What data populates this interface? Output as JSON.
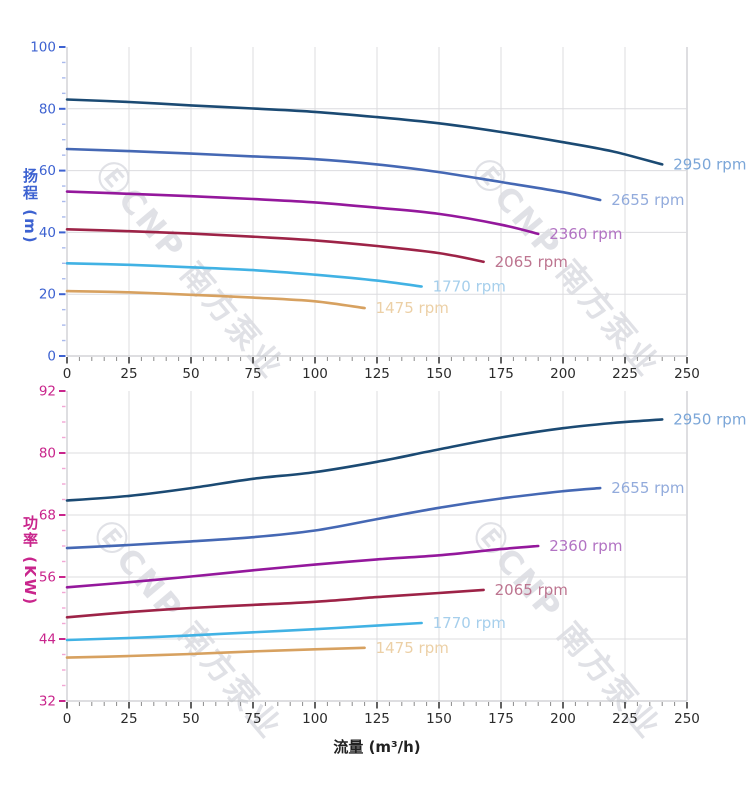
{
  "watermark": {
    "text": "ⒺCNP 南方泵业",
    "color": "#adb0be"
  },
  "chart_data": [
    {
      "type": "line",
      "title": "",
      "ylabel": "扬程 (m)",
      "xlabel": "",
      "xlim": [
        0,
        250
      ],
      "ylim": [
        0,
        100
      ],
      "x_major_step": 25,
      "x_minor_step": 5,
      "y_major_step": 20,
      "y_minor_step": 5,
      "x_ticks": [
        0,
        25,
        50,
        75,
        100,
        125,
        150,
        175,
        200,
        225,
        250
      ],
      "y_ticks": [
        0,
        20,
        40,
        60,
        80,
        100
      ],
      "axis_color": "#3d62d1",
      "axis_minor_color": "#a9b9ec",
      "grid": true,
      "legend_position": "end-of-line",
      "series": [
        {
          "name": "2950 rpm",
          "rpm": 2950,
          "color": "#1b4a73",
          "label_color": "#7ba6d8",
          "points": [
            [
              0,
              83
            ],
            [
              25,
              82.2
            ],
            [
              50,
              81.1
            ],
            [
              75,
              80.1
            ],
            [
              100,
              79
            ],
            [
              125,
              77.3
            ],
            [
              150,
              75.3
            ],
            [
              175,
              72.5
            ],
            [
              200,
              69.2
            ],
            [
              220,
              66.2
            ],
            [
              240,
              62
            ]
          ]
        },
        {
          "name": "2655 rpm",
          "rpm": 2655,
          "color": "#4568b4",
          "label_color": "#92abdc",
          "points": [
            [
              0,
              67
            ],
            [
              25,
              66.3
            ],
            [
              50,
              65.5
            ],
            [
              75,
              64.6
            ],
            [
              100,
              63.7
            ],
            [
              125,
              62
            ],
            [
              150,
              59.5
            ],
            [
              175,
              56.3
            ],
            [
              200,
              53
            ],
            [
              215,
              50.5
            ]
          ]
        },
        {
          "name": "2360 rpm",
          "rpm": 2360,
          "color": "#94189c",
          "label_color": "#b273c3",
          "points": [
            [
              0,
              53.2
            ],
            [
              25,
              52.5
            ],
            [
              50,
              51.7
            ],
            [
              75,
              50.8
            ],
            [
              100,
              49.7
            ],
            [
              125,
              48
            ],
            [
              150,
              46
            ],
            [
              175,
              42.5
            ],
            [
              190,
              39.5
            ]
          ]
        },
        {
          "name": "2065 rpm",
          "rpm": 2065,
          "color": "#9d2347",
          "label_color": "#bd7590",
          "points": [
            [
              0,
              41
            ],
            [
              25,
              40.4
            ],
            [
              50,
              39.6
            ],
            [
              75,
              38.6
            ],
            [
              100,
              37.4
            ],
            [
              125,
              35.6
            ],
            [
              150,
              33.3
            ],
            [
              168,
              30.5
            ]
          ]
        },
        {
          "name": "1770 rpm",
          "rpm": 1770,
          "color": "#41b2e4",
          "label_color": "#a6cfec",
          "points": [
            [
              0,
              30
            ],
            [
              25,
              29.5
            ],
            [
              50,
              28.7
            ],
            [
              75,
              27.8
            ],
            [
              100,
              26.3
            ],
            [
              125,
              24.4
            ],
            [
              143,
              22.5
            ]
          ]
        },
        {
          "name": "1475 rpm",
          "rpm": 1475,
          "color": "#d7a160",
          "label_color": "#ecd0a6",
          "points": [
            [
              0,
              21
            ],
            [
              25,
              20.6
            ],
            [
              50,
              19.8
            ],
            [
              75,
              18.9
            ],
            [
              100,
              17.7
            ],
            [
              120,
              15.5
            ]
          ]
        }
      ]
    },
    {
      "type": "line",
      "title": "",
      "ylabel": "功率 (KW)",
      "xlabel": "流量 (m³/h)",
      "xlim": [
        0,
        250
      ],
      "ylim": [
        32,
        92
      ],
      "x_major_step": 25,
      "x_minor_step": 5,
      "y_major_step": 12,
      "y_minor_step": 3,
      "x_ticks": [
        0,
        25,
        50,
        75,
        100,
        125,
        150,
        175,
        200,
        225,
        250
      ],
      "y_ticks": [
        32,
        44,
        56,
        68,
        80,
        92
      ],
      "axis_color": "#c9258c",
      "axis_minor_color": "#f2a6d4",
      "grid": true,
      "legend_position": "end-of-line",
      "series": [
        {
          "name": "2950 rpm",
          "rpm": 2950,
          "color": "#1b4a73",
          "label_color": "#7ba6d8",
          "points": [
            [
              0,
              70.8
            ],
            [
              25,
              71.7
            ],
            [
              50,
              73.2
            ],
            [
              75,
              75
            ],
            [
              100,
              76.3
            ],
            [
              125,
              78.3
            ],
            [
              150,
              80.7
            ],
            [
              175,
              83
            ],
            [
              200,
              84.8
            ],
            [
              220,
              85.8
            ],
            [
              240,
              86.5
            ]
          ]
        },
        {
          "name": "2655 rpm",
          "rpm": 2655,
          "color": "#4568b4",
          "label_color": "#92abdc",
          "points": [
            [
              0,
              61.6
            ],
            [
              25,
              62.2
            ],
            [
              50,
              62.9
            ],
            [
              75,
              63.7
            ],
            [
              100,
              65
            ],
            [
              125,
              67.2
            ],
            [
              150,
              69.4
            ],
            [
              175,
              71.2
            ],
            [
              200,
              72.6
            ],
            [
              215,
              73.2
            ]
          ]
        },
        {
          "name": "2360 rpm",
          "rpm": 2360,
          "color": "#94189c",
          "label_color": "#b273c3",
          "points": [
            [
              0,
              54
            ],
            [
              25,
              55
            ],
            [
              50,
              56.1
            ],
            [
              75,
              57.3
            ],
            [
              100,
              58.4
            ],
            [
              125,
              59.4
            ],
            [
              150,
              60.2
            ],
            [
              175,
              61.4
            ],
            [
              190,
              62
            ]
          ]
        },
        {
          "name": "2065 rpm",
          "rpm": 2065,
          "color": "#9d2347",
          "label_color": "#bd7590",
          "points": [
            [
              0,
              48.2
            ],
            [
              25,
              49.2
            ],
            [
              50,
              50
            ],
            [
              75,
              50.6
            ],
            [
              100,
              51.2
            ],
            [
              125,
              52.1
            ],
            [
              150,
              52.9
            ],
            [
              168,
              53.5
            ]
          ]
        },
        {
          "name": "1770 rpm",
          "rpm": 1770,
          "color": "#41b2e4",
          "label_color": "#a6cfec",
          "points": [
            [
              0,
              43.8
            ],
            [
              25,
              44.2
            ],
            [
              50,
              44.7
            ],
            [
              75,
              45.3
            ],
            [
              100,
              45.9
            ],
            [
              125,
              46.6
            ],
            [
              143,
              47.1
            ]
          ]
        },
        {
          "name": "1475 rpm",
          "rpm": 1475,
          "color": "#d7a160",
          "label_color": "#ecd0a6",
          "points": [
            [
              0,
              40.4
            ],
            [
              25,
              40.7
            ],
            [
              50,
              41.1
            ],
            [
              75,
              41.6
            ],
            [
              100,
              42
            ],
            [
              120,
              42.3
            ]
          ]
        }
      ]
    }
  ]
}
